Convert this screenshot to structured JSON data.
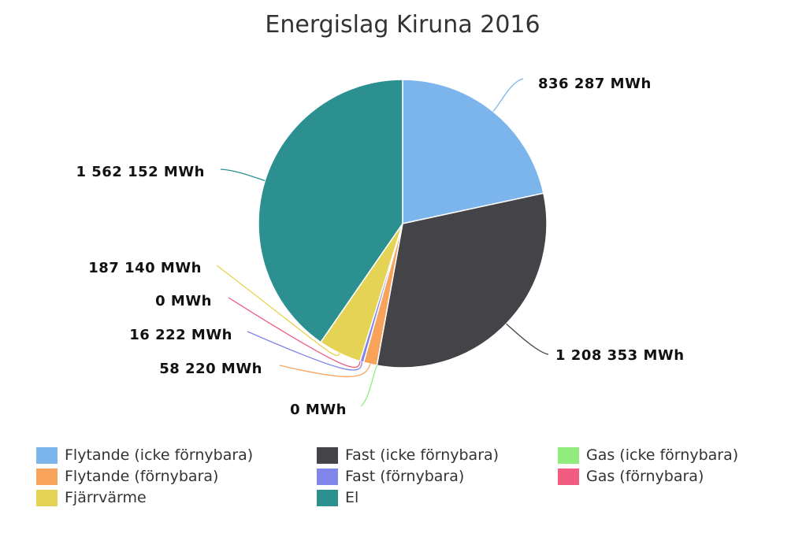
{
  "chart_data": {
    "type": "pie",
    "title": "Energislag Kiruna 2016",
    "unit": "MWh",
    "series": [
      {
        "name": "Flytande (icke förnybara)",
        "value": 836287,
        "label": "836 287 MWh",
        "color": "#7cb5ec"
      },
      {
        "name": "Fast (icke förnybara)",
        "value": 1208353,
        "label": "1 208 353 MWh",
        "color": "#434348"
      },
      {
        "name": "Gas (icke förnybara)",
        "value": 0,
        "label": "0 MWh",
        "color": "#90ed7d"
      },
      {
        "name": "Flytande (förnybara)",
        "value": 58220,
        "label": "58 220 MWh",
        "color": "#f7a35c"
      },
      {
        "name": "Fast (förnybara)",
        "value": 16222,
        "label": "16 222 MWh",
        "color": "#8085e9"
      },
      {
        "name": "Gas (förnybara)",
        "value": 0,
        "label": "0 MWh",
        "color": "#f15c80"
      },
      {
        "name": "Fjärrvärme",
        "value": 187140,
        "label": "187 140 MWh",
        "color": "#e4d354"
      },
      {
        "name": "El",
        "value": 1562152,
        "label": "1 562 152 MWh",
        "color": "#2b908f"
      }
    ],
    "legend_placement": "bottom"
  }
}
